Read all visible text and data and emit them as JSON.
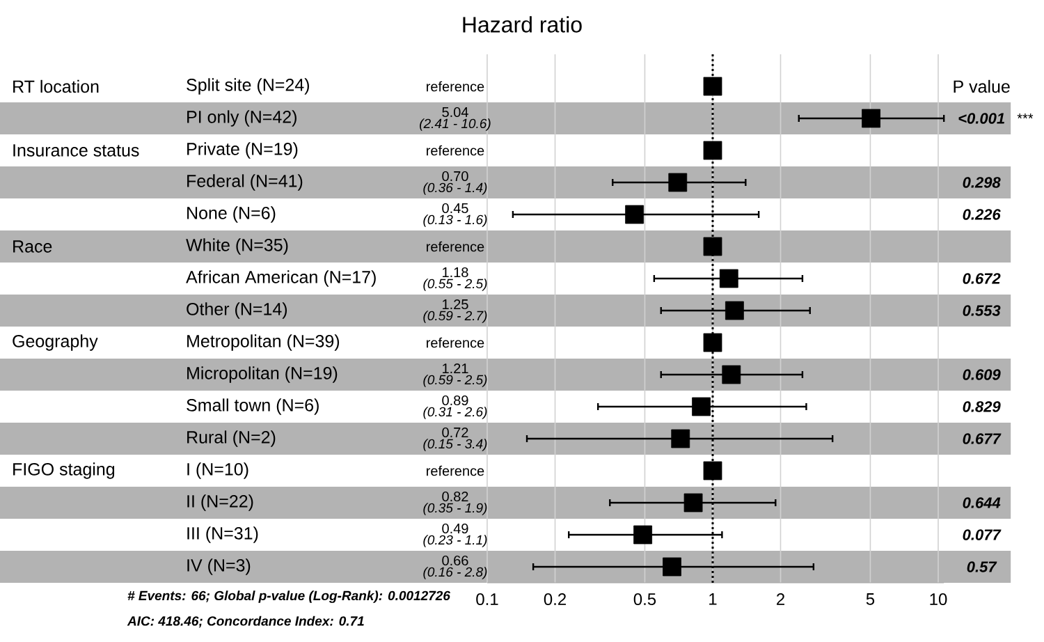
{
  "chart_data": {
    "type": "scatter",
    "orientation": "horizontal",
    "title": "Hazard ratio",
    "categories": [
      "Split site (N=24)",
      "PI only (N=42)",
      "Private (N=19)",
      "Federal (N=41)",
      "None (N=6)",
      "White (N=35)",
      "African American (N=17)",
      "Other (N=14)",
      "Metropolitan (N=39)",
      "Micropolitan (N=19)",
      "Small town (N=6)",
      "Rural (N=2)",
      "I (N=10)",
      "II (N=22)",
      "III (N=31)",
      "IV (N=3)"
    ],
    "values": [
      1,
      5.04,
      1,
      0.7,
      0.45,
      1,
      1.18,
      1.25,
      1,
      1.21,
      0.89,
      0.72,
      1,
      0.82,
      0.49,
      0.66
    ],
    "errors": [
      null,
      [
        2.41,
        10.6
      ],
      null,
      [
        0.36,
        1.4
      ],
      [
        0.13,
        1.6
      ],
      null,
      [
        0.55,
        2.5
      ],
      [
        0.59,
        2.7
      ],
      null,
      [
        0.59,
        2.5
      ],
      [
        0.31,
        2.6
      ],
      [
        0.15,
        3.4
      ],
      null,
      [
        0.35,
        1.9
      ],
      [
        0.23,
        1.1
      ],
      [
        0.16,
        2.8
      ]
    ],
    "color": "#000000",
    "marker": "square",
    "log": "x",
    "grid": "x",
    "xlim": [
      0.1,
      10.6
    ],
    "xticks": [
      0.1,
      0.2,
      0.5,
      1,
      2,
      5,
      10
    ],
    "ref_lines": [
      {
        "axis": "x",
        "value": 1,
        "line_style": "dotted",
        "color": "#000000"
      }
    ],
    "annotations": [
      "RT location",
      "Insurance status",
      "Race",
      "Geography",
      "FIGO staging",
      "P value",
      "<0.001",
      "***",
      "0.298",
      "0.226",
      "0.672",
      "0.553",
      "0.609",
      "0.829",
      "0.677",
      "0.644",
      "0.077",
      "0.57",
      "reference",
      "5.04",
      "reference",
      "0.70",
      "0.45",
      "reference",
      "1.18",
      "1.25",
      "reference",
      "1.21",
      "0.89",
      "0.72",
      "reference",
      "0.82",
      "0.49",
      "0.66",
      "(2.41 - 10.6)",
      "(0.36 - 1.4)",
      "(0.13 - 1.6)",
      "(0.55 - 2.5)",
      "(0.59 - 2.7)",
      "(0.59 - 2.5)",
      "(0.31 - 2.6)",
      "(0.15 - 3.4)",
      "(0.35 - 1.9)",
      "(0.23 - 1.1)",
      "(0.16 - 2.8)",
      "# Events: 66; Global p-value (Log-Rank): 0.0012726",
      "AIC: 418.46; Concordance Index: 0.71"
    ]
  }
}
